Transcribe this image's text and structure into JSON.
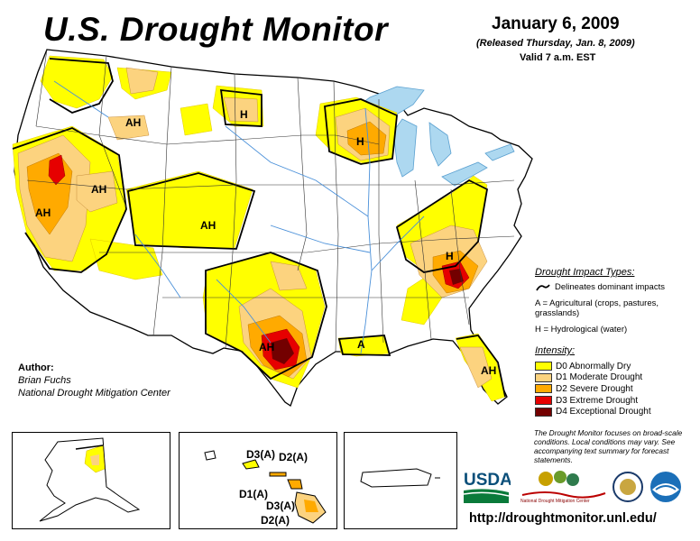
{
  "header": {
    "title": "U.S. Drought Monitor",
    "date": "January 6, 2009",
    "released": "(Released Thursday, Jan. 8, 2009)",
    "valid": "Valid 7 a.m. EST"
  },
  "author": {
    "label": "Author:",
    "name": "Brian Fuchs",
    "org": "National Drought Mitigation Center"
  },
  "impact": {
    "title": "Drought Impact Types:",
    "items": [
      {
        "icon": "boundary-line-icon",
        "text": "Delineates dominant impacts"
      },
      {
        "text": "A = Agricultural (crops, pastures, grasslands)"
      },
      {
        "text": "H = Hydrological (water)"
      }
    ]
  },
  "intensity": {
    "title": "Intensity:",
    "levels": [
      {
        "label": "D0 Abnormally Dry",
        "color": "#ffff00"
      },
      {
        "label": "D1 Moderate Drought",
        "color": "#fcd37f"
      },
      {
        "label": "D2 Severe Drought",
        "color": "#ffaa00"
      },
      {
        "label": "D3 Extreme Drought",
        "color": "#e60000"
      },
      {
        "label": "D4 Exceptional Drought",
        "color": "#730000"
      }
    ]
  },
  "note": "The Drought Monitor focuses on broad-scale conditions. Local conditions may vary. See accompanying text summary for forecast statements.",
  "url": "http://droughtmonitor.unl.edu/",
  "logos": {
    "usda": "USDA",
    "ndmc": "National Drought Mitigation Center"
  },
  "map_labels": {
    "pacific_nw": "AH",
    "northern_plains": "H",
    "great_lakes": "H",
    "nevada": "AH",
    "california": "AH",
    "colorado": "AH",
    "southeast": "H",
    "texas": "AH",
    "louisiana": "A",
    "florida": "AH"
  },
  "hawaii_labels": {
    "kauai_oahu": "D3(A)",
    "oahu": "D2(A)",
    "molokai": "D1(A)",
    "maui": "D3(A)",
    "big_island": "D2(A)"
  }
}
